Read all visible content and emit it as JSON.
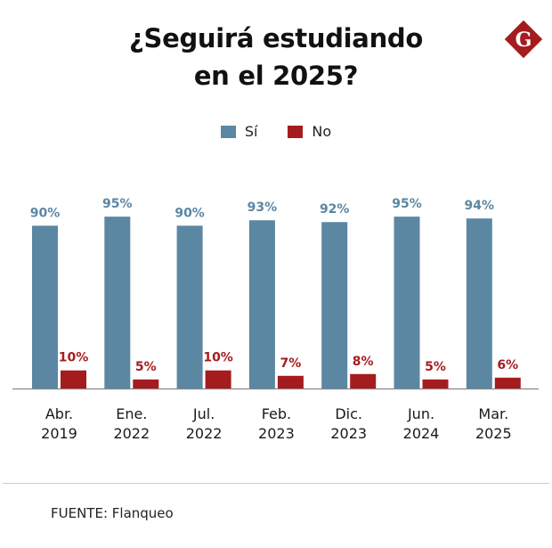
{
  "header": {
    "title_line1": "¿Seguirá estudiando",
    "title_line2": "en el 2025?",
    "logo_letter": "G"
  },
  "colors": {
    "si": "#5b87a3",
    "no": "#a51c1f",
    "logo": "#a51c1f",
    "axis": "#888888"
  },
  "legend": [
    {
      "label": "Sí",
      "color": "#5b87a3"
    },
    {
      "label": "No",
      "color": "#a51c1f"
    }
  ],
  "chart_data": {
    "type": "bar",
    "title": "¿Seguirá estudiando en el 2025?",
    "xlabel": "",
    "ylabel": "",
    "ylim": [
      0,
      100
    ],
    "grid": false,
    "legend_position": "top-center",
    "categories": [
      [
        "Abr.",
        "2019"
      ],
      [
        "Ene.",
        "2022"
      ],
      [
        "Jul.",
        "2022"
      ],
      [
        "Feb.",
        "2023"
      ],
      [
        "Dic.",
        "2023"
      ],
      [
        "Jun.",
        "2024"
      ],
      [
        "Mar.",
        "2025"
      ]
    ],
    "series": [
      {
        "name": "Sí",
        "values": [
          90,
          95,
          90,
          93,
          92,
          95,
          94
        ],
        "labels": [
          "90%",
          "95%",
          "90%",
          "93%",
          "92%",
          "95%",
          "94%"
        ]
      },
      {
        "name": "No",
        "values": [
          10,
          5,
          10,
          7,
          8,
          5,
          6
        ],
        "labels": [
          "10%",
          "5%",
          "10%",
          "7%",
          "8%",
          "5%",
          "6%"
        ]
      }
    ]
  },
  "footer": {
    "source": "FUENTE: Flanqueo"
  }
}
